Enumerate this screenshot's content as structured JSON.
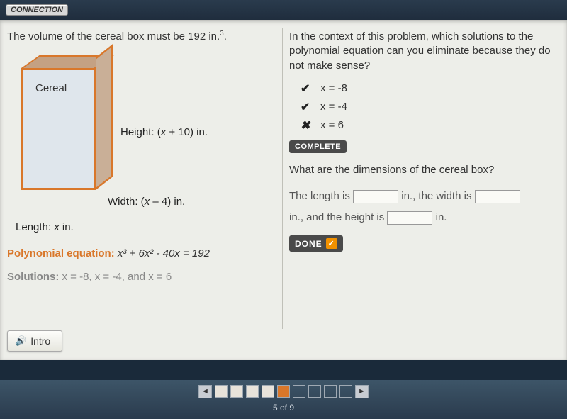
{
  "topbar": {
    "connection": "CONNECTION"
  },
  "left": {
    "problem": "The volume of the cereal box must be 192 in.",
    "problem_exp": "3",
    "box_label": "Cereal",
    "height_label": "Height: (",
    "height_expr": "x",
    "height_tail": " + 10) in.",
    "width_label": "Width: (",
    "width_expr": "x",
    "width_tail": " – 4) in.",
    "length_label": "Length: ",
    "length_expr": "x",
    "length_tail": " in.",
    "eq_label": "Polynomial equation:",
    "eq_body": "x³ + 6x² - 40x = 192",
    "sol_label": "Solutions:",
    "sol_body": "x = -8, x = -4, and x = 6"
  },
  "right": {
    "q1": "In the context of this problem, which solutions to the polynomial equation can you eliminate because they do not make sense?",
    "options": [
      {
        "mark": "✔",
        "text": "x = -8"
      },
      {
        "mark": "✔",
        "text": "x = -4"
      },
      {
        "mark": "✖",
        "text": "x = 6"
      }
    ],
    "complete": "COMPLETE",
    "q2": "What are the dimensions of the cereal box?",
    "fill1a": "The length is ",
    "fill1b": " in., the width is ",
    "fill2a": " in., and the height is ",
    "fill2b": " in.",
    "done": "DONE"
  },
  "intro": "Intro",
  "nav": {
    "total": 9,
    "current": 5,
    "label": "5 of 9"
  },
  "colors": {
    "accent": "#d9772a",
    "panel": "#edeee9",
    "badge": "#4a4a4a"
  }
}
